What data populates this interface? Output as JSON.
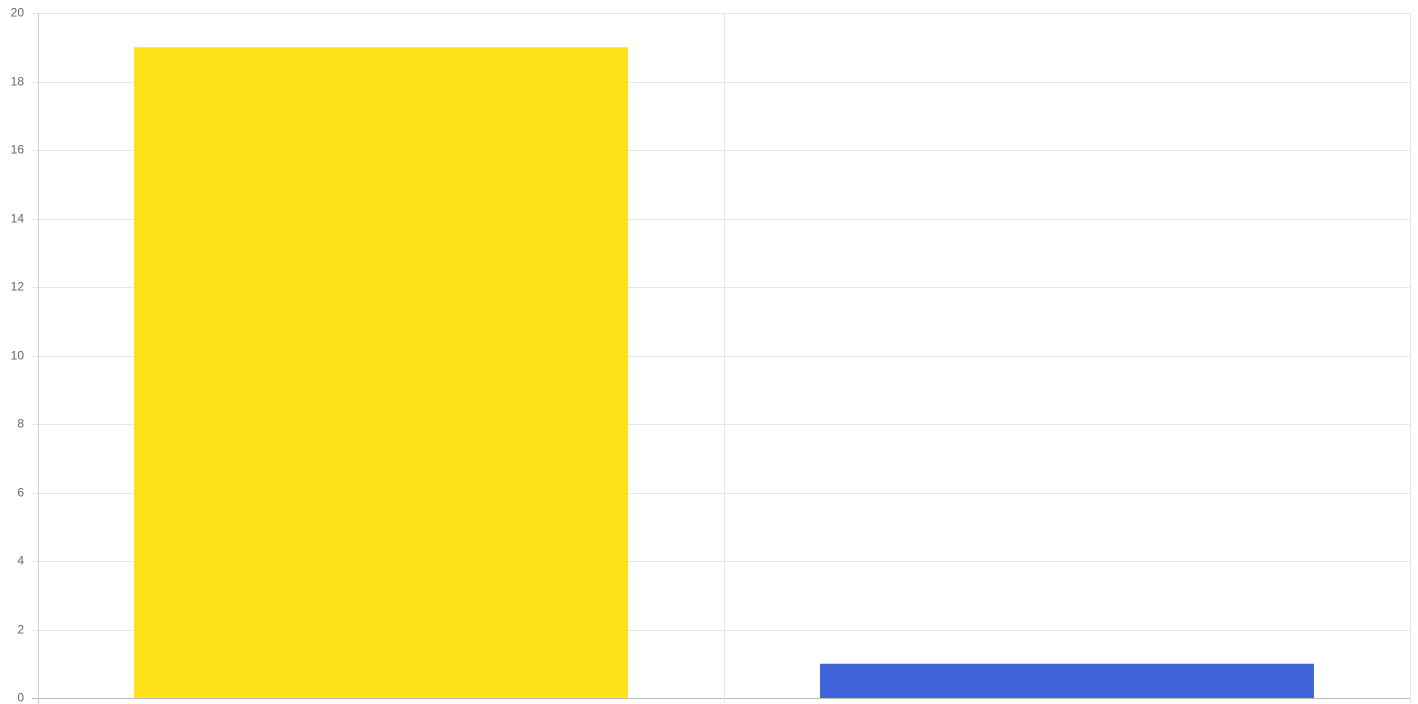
{
  "chart_data": {
    "type": "bar",
    "categories": [
      "",
      ""
    ],
    "values": [
      19,
      1
    ],
    "bar_colors": [
      "#fde119",
      "#4164d8"
    ],
    "ylim": [
      0,
      20
    ],
    "y_ticks": [
      0,
      2,
      4,
      6,
      8,
      10,
      12,
      14,
      16,
      18,
      20
    ],
    "title": "",
    "xlabel": "",
    "ylabel": "",
    "grid": true,
    "legend": "none"
  }
}
